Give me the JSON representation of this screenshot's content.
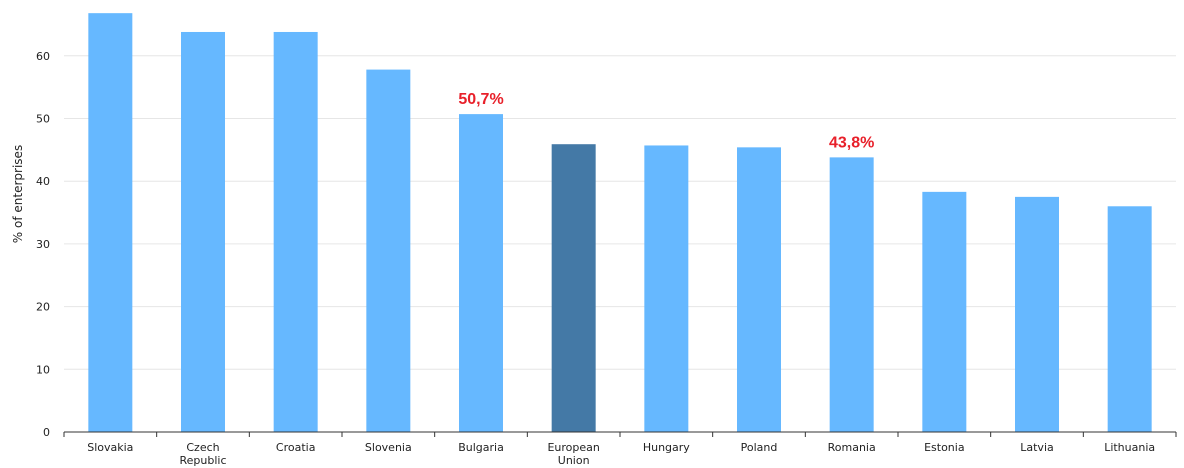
{
  "chart_data": {
    "type": "bar",
    "categories": [
      "Slovakia",
      "Czech Republic",
      "Croatia",
      "Slovenia",
      "Bulgaria",
      "European Union",
      "Hungary",
      "Poland",
      "Romania",
      "Estonia",
      "Latvia",
      "Lithuania"
    ],
    "category_lines": [
      [
        "Slovakia"
      ],
      [
        "Czech",
        "Republic"
      ],
      [
        "Croatia"
      ],
      [
        "Slovenia"
      ],
      [
        "Bulgaria"
      ],
      [
        "European",
        "Union"
      ],
      [
        "Hungary"
      ],
      [
        "Poland"
      ],
      [
        "Romania"
      ],
      [
        "Estonia"
      ],
      [
        "Latvia"
      ],
      [
        "Lithuania"
      ]
    ],
    "values": [
      66.8,
      63.8,
      63.8,
      57.8,
      50.7,
      45.9,
      45.7,
      45.4,
      43.8,
      38.3,
      37.5,
      36.0
    ],
    "highlight_category": "European Union",
    "data_labels": [
      {
        "category": "Bulgaria",
        "text": "50,7%"
      },
      {
        "category": "Romania",
        "text": "43,8%"
      }
    ],
    "title": "",
    "xlabel": "",
    "ylabel": "% of enterprises",
    "ylim": [
      0,
      67
    ],
    "yticks": [
      0,
      10,
      20,
      30,
      40,
      50,
      60
    ],
    "grid": true,
    "legend": "none",
    "colors": {
      "bar": "#66b8ff",
      "highlight_bar": "#4479a6",
      "data_label": "#e8202a",
      "grid": "#e6e6e6",
      "axis": "#333333"
    }
  }
}
